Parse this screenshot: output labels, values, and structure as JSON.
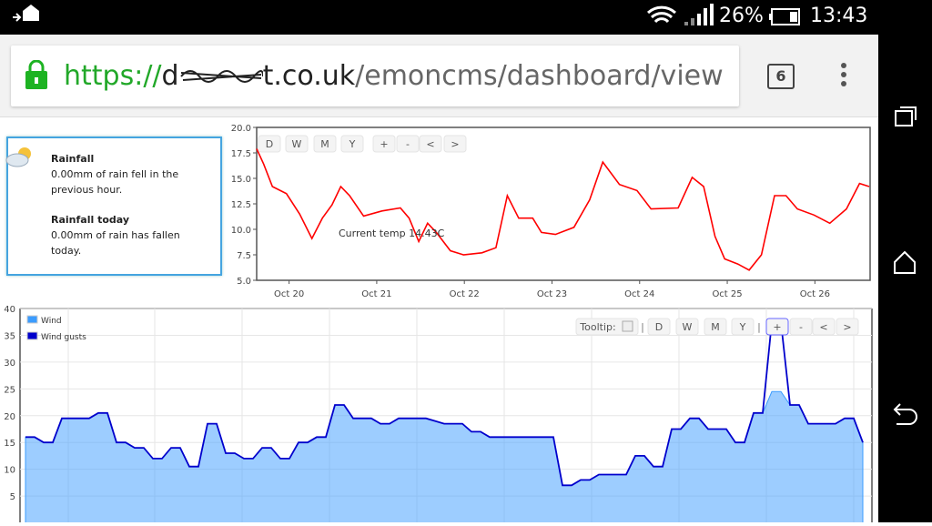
{
  "status_bar": {
    "battery": "26%",
    "time": "13:43"
  },
  "browser": {
    "url_scheme": "https://",
    "url_host_start": "d",
    "url_host_end": "t.co.uk",
    "url_path": "/emoncms/dashboard/view",
    "tab_count": "6"
  },
  "widget": {
    "title_1": "Rainfall",
    "text_1": "0.00mm of rain fell in the previous hour.",
    "title_2": "Rainfall today",
    "text_2": "0.00mm of rain has fallen today."
  },
  "chart_data": [
    {
      "type": "line",
      "color": "#ff0000",
      "x": [
        19.63,
        19.71,
        19.81,
        19.97,
        20.12,
        20.26,
        20.38,
        20.49,
        20.59,
        20.69,
        20.85,
        21.06,
        21.27,
        21.37,
        21.48,
        21.58,
        21.68,
        21.84,
        21.99,
        22.2,
        22.36,
        22.49,
        22.62,
        22.78,
        22.88,
        23.04,
        23.25,
        23.43,
        23.58,
        23.77,
        23.97,
        24.13,
        24.44,
        24.6,
        24.73,
        24.86,
        24.97,
        25.12,
        25.25,
        25.39,
        25.54,
        25.67,
        25.8,
        25.99,
        26.17,
        26.36,
        26.51,
        26.62
      ],
      "values": [
        17.9,
        16.4,
        14.2,
        13.5,
        11.5,
        9.1,
        11.1,
        12.4,
        14.2,
        13.3,
        11.3,
        11.8,
        12.1,
        11.1,
        8.8,
        10.6,
        9.7,
        7.9,
        7.5,
        7.7,
        8.2,
        13.3,
        11.1,
        11.1,
        9.7,
        9.5,
        10.2,
        12.9,
        16.6,
        14.4,
        13.8,
        12.0,
        12.1,
        15.1,
        14.2,
        9.3,
        7.1,
        6.6,
        6.0,
        7.5,
        13.3,
        13.3,
        12.0,
        11.4,
        10.6,
        12.0,
        14.5,
        14.2
      ],
      "xlim": [
        19.63,
        26.63
      ],
      "xticks": [
        {
          "value": 20,
          "label": "Oct 20"
        },
        {
          "value": 21,
          "label": "Oct 21"
        },
        {
          "value": 22,
          "label": "Oct 22"
        },
        {
          "value": 23,
          "label": "Oct 23"
        },
        {
          "value": 24,
          "label": "Oct 24"
        },
        {
          "value": 25,
          "label": "Oct 25"
        },
        {
          "value": 26,
          "label": "Oct 26"
        }
      ],
      "ylim": [
        5,
        20
      ],
      "yticks": [
        {
          "value": 5,
          "label": "5.0"
        },
        7.5,
        {
          "value": 10,
          "label": "10.0"
        },
        12.5,
        {
          "value": 15,
          "label": "15.0"
        },
        17.5,
        {
          "value": 20,
          "label": "20.0"
        }
      ],
      "grid": false,
      "buttons": [
        "D",
        "W",
        "M",
        "Y",
        "+",
        "-",
        "<",
        ">"
      ],
      "annotation": "Current temp 14.43C"
    },
    {
      "type": "area",
      "series": [
        {
          "name": "Wind",
          "color": "#3b9cff",
          "values": [
            16,
            16,
            15,
            15,
            19.5,
            19.5,
            19.5,
            19.5,
            20.5,
            20.5,
            15,
            15,
            14,
            14,
            12,
            12,
            14,
            14,
            10.5,
            10.5,
            18.5,
            18.5,
            13,
            13,
            12,
            12,
            14,
            14,
            12,
            12,
            15,
            15,
            16,
            16,
            22,
            22,
            19.5,
            19.5,
            19.5,
            18.5,
            18.5,
            19.5,
            19.5,
            19.5,
            19.5,
            19,
            18.5,
            18.5,
            18.5,
            17,
            17,
            16,
            16,
            16,
            16,
            16,
            16,
            16,
            16,
            7,
            7,
            8,
            8,
            9,
            9,
            9,
            9,
            12.5,
            12.5,
            10.5,
            10.5,
            17.5,
            17.5,
            19.5,
            19.5,
            17.5,
            17.5,
            17.5,
            15,
            15,
            20.5,
            20.5,
            24.5,
            24.5,
            22,
            22,
            18.5,
            18.5,
            18.5,
            18.5,
            19.5,
            19.5,
            15
          ]
        },
        {
          "name": "Wind gusts",
          "color": "#0000cc",
          "values": [
            16,
            16,
            15,
            15,
            19.5,
            19.5,
            19.5,
            19.5,
            20.5,
            20.5,
            15,
            15,
            14,
            14,
            12,
            12,
            14,
            14,
            10.5,
            10.5,
            18.5,
            18.5,
            13,
            13,
            12,
            12,
            14,
            14,
            12,
            12,
            15,
            15,
            16,
            16,
            22,
            22,
            19.5,
            19.5,
            19.5,
            18.5,
            18.5,
            19.5,
            19.5,
            19.5,
            19.5,
            19,
            18.5,
            18.5,
            18.5,
            17,
            17,
            16,
            16,
            16,
            16,
            16,
            16,
            16,
            16,
            7,
            7,
            8,
            8,
            9,
            9,
            9,
            9,
            12.5,
            12.5,
            10.5,
            10.5,
            17.5,
            17.5,
            19.5,
            19.5,
            17.5,
            17.5,
            17.5,
            15,
            15,
            20.5,
            20.5,
            37.5,
            37.5,
            22,
            22,
            18.5,
            18.5,
            18.5,
            18.5,
            19.5,
            19.5,
            15
          ]
        }
      ],
      "ylim": [
        0,
        40
      ],
      "yticks": [
        5,
        10,
        15,
        20,
        25,
        30,
        35,
        40
      ],
      "grid": true,
      "legend": "upper left",
      "toolbar": [
        "Tooltip:",
        "|",
        "D",
        "W",
        "M",
        "Y",
        "|",
        "+",
        "-",
        "<",
        ">"
      ]
    }
  ]
}
